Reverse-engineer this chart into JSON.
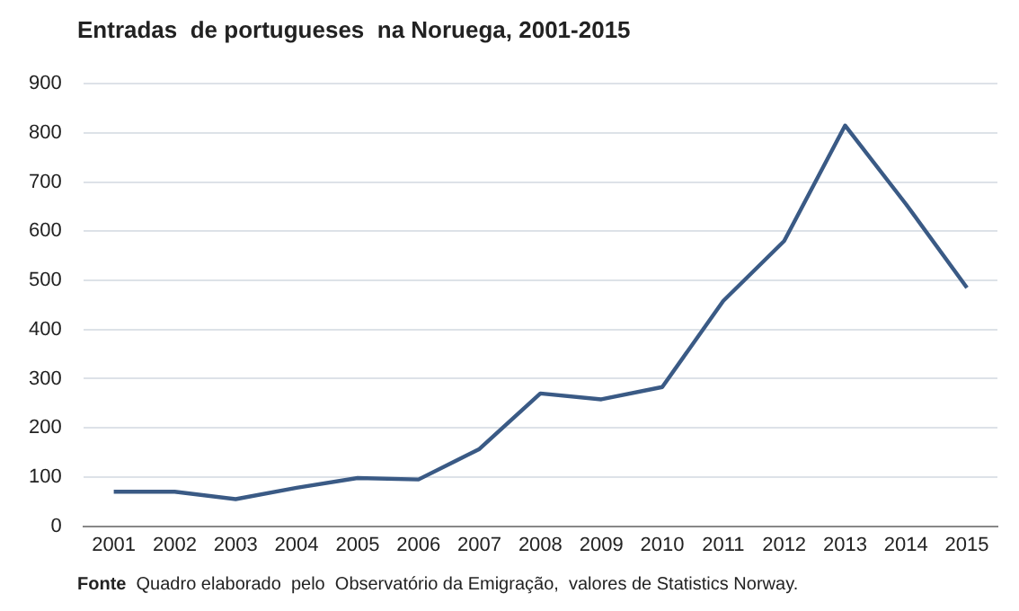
{
  "chart_data": {
    "type": "line",
    "title": "Entradas  de portugueses  na Noruega, 2001-2015",
    "categories": [
      "2001",
      "2002",
      "2003",
      "2004",
      "2005",
      "2006",
      "2007",
      "2008",
      "2009",
      "2010",
      "2011",
      "2012",
      "2013",
      "2014",
      "2015"
    ],
    "series": [
      {
        "color": "#3a5a85",
        "values": [
          70,
          70,
          55,
          78,
          98,
          95,
          157,
          270,
          258,
          283,
          458,
          580,
          815,
          655,
          485
        ]
      }
    ],
    "ylim": [
      0,
      900
    ],
    "yticks": [
      0,
      100,
      200,
      300,
      400,
      500,
      600,
      700,
      800,
      900
    ],
    "grid": "y",
    "legend": false,
    "marker": "none",
    "line_style": "solid",
    "annotations": [
      "Fonte  Quadro elaborado  pelo  Observatório da Emigração,  valores de Statistics Norway."
    ]
  }
}
